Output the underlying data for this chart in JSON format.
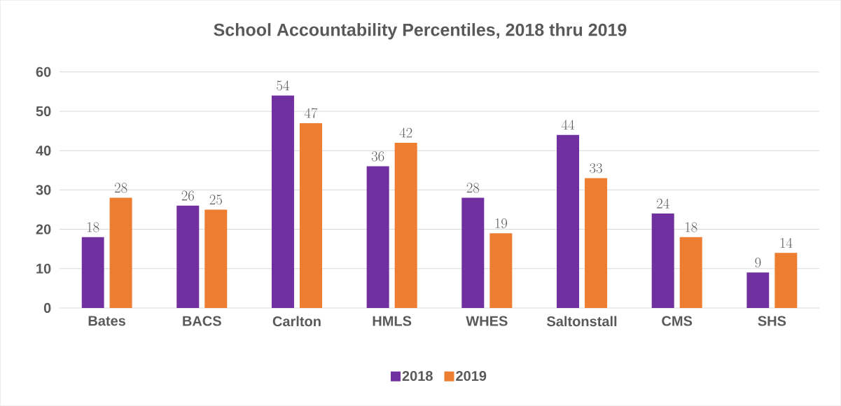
{
  "chart_data": {
    "type": "bar",
    "title": "School Accountability Percentiles, 2018 thru 2019",
    "categories": [
      "Bates",
      "BACS",
      "Carlton",
      "HMLS",
      "WHES",
      "Saltonstall",
      "CMS",
      "SHS"
    ],
    "series": [
      {
        "name": "2018",
        "color": "#7030a0",
        "values": [
          18,
          26,
          54,
          36,
          28,
          44,
          24,
          9
        ]
      },
      {
        "name": "2019",
        "color": "#ed7d31",
        "values": [
          28,
          25,
          47,
          42,
          19,
          33,
          18,
          14
        ]
      }
    ],
    "ylim": [
      0,
      60
    ],
    "yticks": [
      0,
      10,
      20,
      30,
      40,
      50,
      60
    ],
    "grid": "y",
    "legend": "bottom",
    "data_labels": true
  }
}
